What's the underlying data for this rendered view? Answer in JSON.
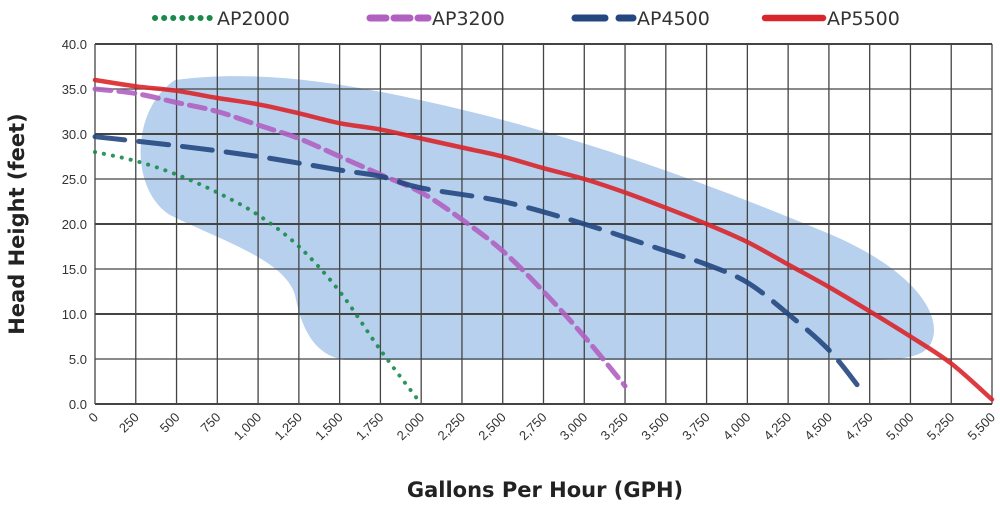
{
  "chart_data": {
    "type": "line",
    "title": "",
    "xlabel": "Gallons Per Hour (GPH)",
    "ylabel": "Head Height (feet)",
    "xlim": [
      0,
      5500
    ],
    "ylim": [
      0,
      40
    ],
    "xticks": [
      "0",
      "250",
      "500",
      "750",
      "1,000",
      "1,250",
      "1,500",
      "1,750",
      "2,000",
      "2,250",
      "2,500",
      "2,750",
      "3,000",
      "3,250",
      "3,500",
      "3,750",
      "4,000",
      "4,250",
      "4,500",
      "4,750",
      "5,000",
      "5,250",
      "5,500"
    ],
    "yticks": [
      "0.0",
      "5.0",
      "10.0",
      "15.0",
      "20.0",
      "25.0",
      "30.0",
      "35.0",
      "40.0"
    ],
    "grid": true,
    "legend_position": "top",
    "shaded_region_color": "#a9c8ea",
    "series": [
      {
        "name": "AP2000",
        "color": "#1a8a4a",
        "style": "dotted",
        "x": [
          0,
          250,
          500,
          750,
          1000,
          1250,
          1500,
          1750,
          2000
        ],
        "y": [
          28,
          27,
          25.5,
          23.5,
          21,
          17.5,
          12.5,
          6,
          0
        ]
      },
      {
        "name": "AP3200",
        "color": "#b060c0",
        "style": "dashed",
        "x": [
          0,
          250,
          500,
          750,
          1000,
          1250,
          1500,
          1750,
          2000,
          2250,
          2500,
          2750,
          3000,
          3250
        ],
        "y": [
          35,
          34.5,
          33.5,
          32.5,
          31,
          29.5,
          27.5,
          25.5,
          23.5,
          20.5,
          17,
          12.5,
          7.5,
          2
        ]
      },
      {
        "name": "AP4500",
        "color": "#24477f",
        "style": "long-dash",
        "x": [
          0,
          500,
          1000,
          1500,
          1750,
          2000,
          2500,
          3000,
          3500,
          3750,
          4000,
          4250,
          4500,
          4700
        ],
        "y": [
          29.7,
          28.7,
          27.5,
          26,
          25.3,
          24,
          22.5,
          20,
          17,
          15.5,
          13.5,
          10,
          6,
          1.5
        ]
      },
      {
        "name": "AP5500",
        "color": "#d9262b",
        "style": "solid",
        "x": [
          0,
          250,
          500,
          750,
          1000,
          1250,
          1500,
          1750,
          2000,
          2250,
          2500,
          2750,
          3000,
          3250,
          3500,
          3750,
          4000,
          4250,
          4500,
          4750,
          5000,
          5250,
          5500
        ],
        "y": [
          36,
          35.3,
          34.8,
          34,
          33.3,
          32.3,
          31.2,
          30.5,
          29.5,
          28.5,
          27.5,
          26.2,
          25,
          23.5,
          21.8,
          20,
          18,
          15.5,
          13,
          10.3,
          7.5,
          4.5,
          0.5
        ]
      }
    ]
  }
}
